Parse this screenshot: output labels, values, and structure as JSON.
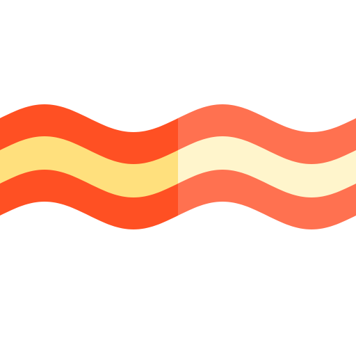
{
  "icon": {
    "name": "bacon-icon",
    "colors": {
      "background": "#ffffff",
      "left_meat": "#ff5023",
      "left_fat": "#ffe07d",
      "right_meat": "#ff7150",
      "right_fat": "#fff5cc"
    }
  }
}
